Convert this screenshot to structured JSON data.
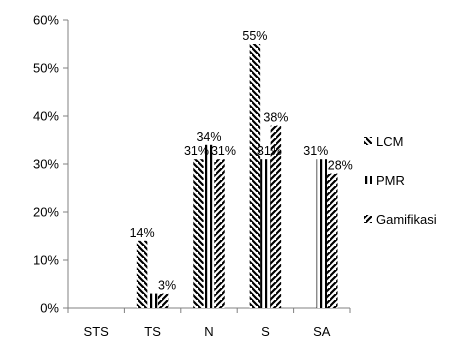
{
  "chart_data": {
    "type": "bar",
    "categories": [
      "STS",
      "TS",
      "N",
      "S",
      "SA"
    ],
    "series": [
      {
        "name": "LCM",
        "values": [
          0,
          14,
          31,
          55,
          0
        ],
        "labels": [
          "",
          "14%",
          "31%",
          "55%",
          ""
        ]
      },
      {
        "name": "PMR",
        "values": [
          0,
          3,
          34,
          31,
          31
        ],
        "labels": [
          "",
          "",
          "34%",
          "31%",
          "31%"
        ]
      },
      {
        "name": "Gamifikasi",
        "values": [
          0,
          3,
          31,
          38,
          28
        ],
        "labels": [
          "",
          "3%",
          "31%",
          "38%",
          "28%"
        ]
      }
    ],
    "yticks": [
      "0%",
      "10%",
      "20%",
      "30%",
      "40%",
      "50%",
      "60%"
    ],
    "ylim": [
      0,
      60
    ],
    "grid": false,
    "legend_position": "right",
    "colors": {
      "bar_pattern": "#000000",
      "background": "#ffffff",
      "axis": "#808080"
    }
  }
}
